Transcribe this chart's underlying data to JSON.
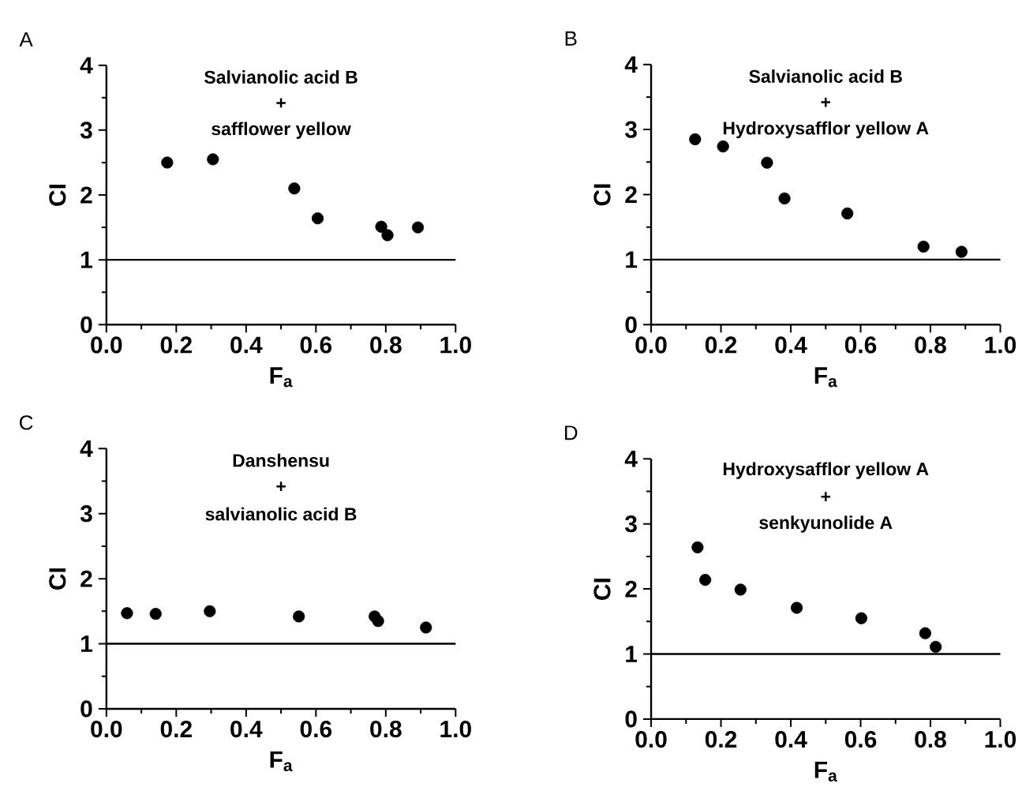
{
  "chart_data": [
    {
      "type": "scatter",
      "title": "A",
      "xlabel": "F$_{a}$",
      "ylabel": "CI",
      "annotations": [
        "Salvianolic acid B",
        "+",
        "safflower yellow"
      ],
      "color": "#000000",
      "marker": "circle",
      "grid": false,
      "x": [
        0.174,
        0.305,
        0.538,
        0.605,
        0.787,
        0.805,
        0.892
      ],
      "values": [
        2.5,
        2.55,
        2.1,
        1.64,
        1.51,
        1.38,
        1.5
      ],
      "xlim": [
        0,
        1
      ],
      "ylim": [
        0,
        4
      ],
      "xticks": [
        {
          "value": 0,
          "label": "0.0"
        },
        {
          "value": 0.2,
          "label": "0.2"
        },
        {
          "value": 0.4,
          "label": "0.4"
        },
        {
          "value": 0.6,
          "label": "0.6"
        },
        {
          "value": 0.8,
          "label": "0.8"
        },
        {
          "value": 1,
          "label": "1.0"
        }
      ],
      "yticks": [
        0,
        1,
        2,
        3,
        4
      ],
      "ref_lines": [
        {
          "axis": "y",
          "value": 1,
          "color": "#000000"
        }
      ]
    },
    {
      "type": "scatter",
      "title": "B",
      "xlabel": "F$_{a}$",
      "ylabel": "CI",
      "annotations": [
        "Salvianolic acid B",
        "+",
        "Hydroxysafflor yellow A"
      ],
      "color": "#000000",
      "marker": "circle",
      "grid": false,
      "x": [
        0.126,
        0.206,
        0.332,
        0.382,
        0.562,
        0.78,
        0.889
      ],
      "values": [
        2.85,
        2.74,
        2.49,
        1.94,
        1.71,
        1.2,
        1.12
      ],
      "xlim": [
        0,
        1
      ],
      "ylim": [
        0,
        4
      ],
      "xticks": [
        {
          "value": 0,
          "label": "0.0"
        },
        {
          "value": 0.2,
          "label": "0.2"
        },
        {
          "value": 0.4,
          "label": "0.4"
        },
        {
          "value": 0.6,
          "label": "0.6"
        },
        {
          "value": 0.8,
          "label": "0.8"
        },
        {
          "value": 1,
          "label": "1.0"
        }
      ],
      "yticks": [
        0,
        1,
        2,
        3,
        4
      ],
      "ref_lines": [
        {
          "axis": "y",
          "value": 1,
          "color": "#000000"
        }
      ]
    },
    {
      "type": "scatter",
      "title": "C",
      "xlabel": "F$_{a}$",
      "ylabel": "CI",
      "annotations": [
        "Danshensu",
        "+",
        "salvianolic acid B"
      ],
      "color": "#000000",
      "marker": "circle",
      "grid": false,
      "x": [
        0.059,
        0.141,
        0.296,
        0.551,
        0.768,
        0.778,
        0.915
      ],
      "values": [
        1.47,
        1.46,
        1.5,
        1.42,
        1.42,
        1.35,
        1.25
      ],
      "xlim": [
        0,
        1
      ],
      "ylim": [
        0,
        4
      ],
      "xticks": [
        {
          "value": 0,
          "label": "0.0"
        },
        {
          "value": 0.2,
          "label": "0.2"
        },
        {
          "value": 0.4,
          "label": "0.4"
        },
        {
          "value": 0.6,
          "label": "0.6"
        },
        {
          "value": 0.8,
          "label": "0.8"
        },
        {
          "value": 1,
          "label": "1.0"
        }
      ],
      "yticks": [
        0,
        1,
        2,
        3,
        4
      ],
      "ref_lines": [
        {
          "axis": "y",
          "value": 1,
          "color": "#000000"
        }
      ]
    },
    {
      "type": "scatter",
      "title": "D",
      "xlabel": "F$_{a}$",
      "ylabel": "CI",
      "annotations": [
        "Hydroxysafflor yellow A",
        "+",
        "senkyunolide A"
      ],
      "color": "#000000",
      "marker": "circle",
      "grid": false,
      "x": [
        0.133,
        0.155,
        0.256,
        0.417,
        0.602,
        0.785,
        0.815
      ],
      "values": [
        2.64,
        2.14,
        1.99,
        1.71,
        1.55,
        1.32,
        1.11
      ],
      "xlim": [
        0,
        1
      ],
      "ylim": [
        0,
        4
      ],
      "xticks": [
        {
          "value": 0,
          "label": "0.0"
        },
        {
          "value": 0.2,
          "label": "0.2"
        },
        {
          "value": 0.4,
          "label": "0.4"
        },
        {
          "value": 0.6,
          "label": "0.6"
        },
        {
          "value": 0.8,
          "label": "0.8"
        },
        {
          "value": 1,
          "label": "1.0"
        }
      ],
      "yticks": [
        0,
        1,
        2,
        3,
        4
      ],
      "ref_lines": [
        {
          "axis": "y",
          "value": 1,
          "color": "#000000"
        }
      ]
    }
  ]
}
